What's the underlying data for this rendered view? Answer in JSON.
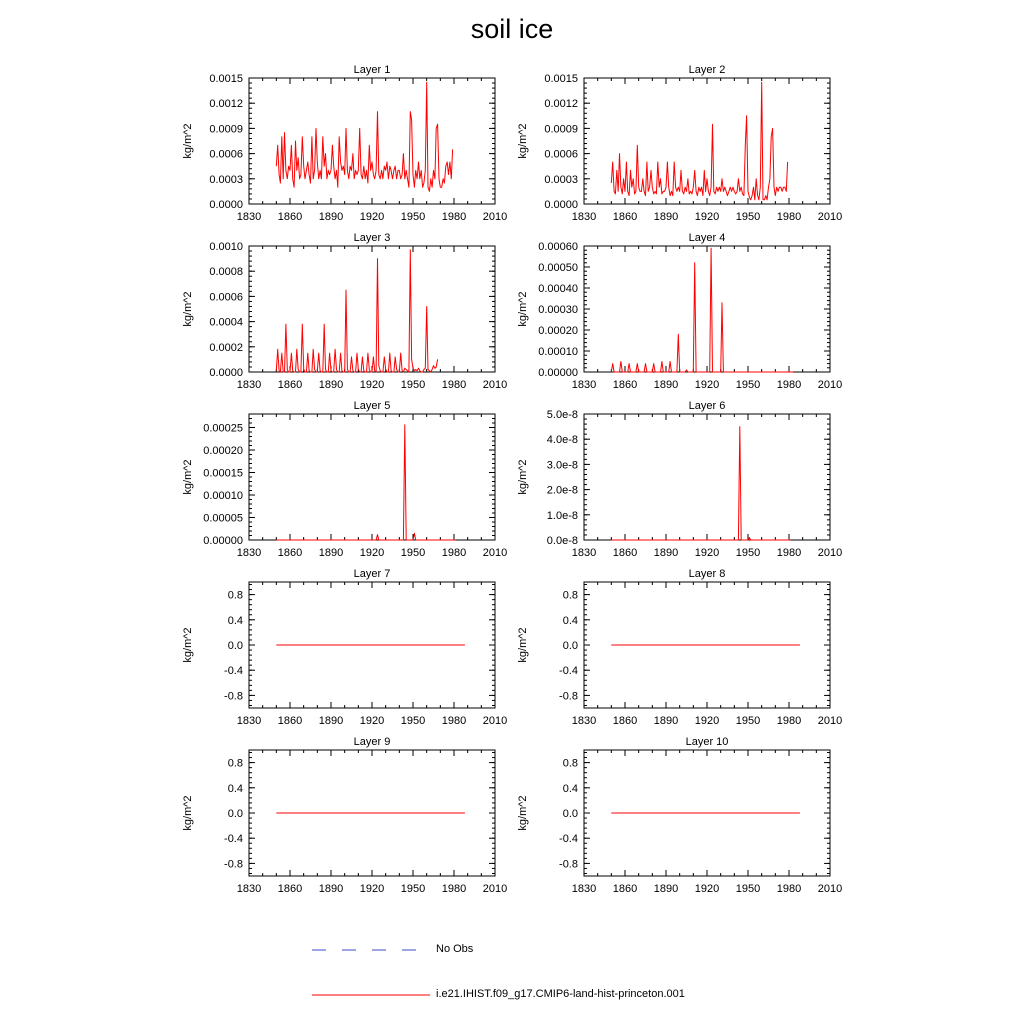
{
  "title": "soil ice",
  "colors": {
    "model": "#ff0000",
    "obs": "#3b4bc8"
  },
  "legend": [
    {
      "label": "No Obs",
      "style": "dashed",
      "color": "#3b4bc8"
    },
    {
      "label": "i.e21.IHIST.f09_g17.CMIP6-land-hist-princeton.001",
      "style": "solid",
      "color": "#ff0000"
    }
  ],
  "chart_data": [
    {
      "type": "line",
      "title": "Layer 1",
      "ylabel": "kg/m^2",
      "xlim": [
        1830,
        2010
      ],
      "ylim": [
        0,
        0.0015
      ],
      "xticks": [
        "1830",
        "1860",
        "1890",
        "1920",
        "1950",
        "1980",
        "2010"
      ],
      "yticks": [
        "0.0000",
        "0.0003",
        "0.0006",
        "0.0009",
        "0.0012",
        "0.0015"
      ],
      "series": [
        {
          "start_year": 1850,
          "values": [
            0.00045,
            0.0007,
            0.00035,
            0.00025,
            0.0008,
            0.0003,
            0.00085,
            0.0004,
            0.0003,
            0.00045,
            0.0004,
            0.0007,
            0.0003,
            0.0002,
            0.00075,
            0.0004,
            0.00055,
            0.0003,
            0.00035,
            0.0008,
            0.00045,
            0.0003,
            0.0004,
            0.0005,
            0.00035,
            0.00025,
            0.0008,
            0.0003,
            0.0004,
            0.0009,
            0.0005,
            0.0003,
            0.0004,
            0.0003,
            0.0008,
            0.00045,
            0.0006,
            0.0003,
            0.0004,
            0.00035,
            0.0004,
            0.0007,
            0.00045,
            0.0003,
            0.0004,
            0.0002,
            0.0008,
            0.0005,
            0.0004,
            0.00045,
            0.00035,
            0.0009,
            0.0004,
            0.0003,
            0.00045,
            0.0004,
            0.0006,
            0.0003,
            0.0004,
            0.00035,
            0.0004,
            0.0009,
            0.00035,
            0.0003,
            0.00045,
            0.0003,
            0.0004,
            0.00025,
            0.0007,
            0.0004,
            0.0005,
            0.00035,
            0.0003,
            0.0004,
            0.0011,
            0.00035,
            0.0003,
            0.0004,
            0.0003,
            0.00045,
            0.0004,
            0.0005,
            0.0003,
            0.00045,
            0.0004,
            0.0003,
            0.0004,
            0.00045,
            0.0003,
            0.0004,
            0.0004,
            0.0003,
            0.00035,
            0.0006,
            0.0003,
            0.0004,
            0.0003,
            0.0002,
            0.0011,
            0.001,
            0.00035,
            0.0002,
            0.0004,
            0.0003,
            0.0005,
            0.0003,
            0.0004,
            0.0002,
            0.00025,
            0.0004,
            0.00145,
            0.0002,
            0.00015,
            0.0003,
            0.0002,
            0.0004,
            0.0003,
            0.0009,
            0.00095,
            0.0003,
            0.0002,
            0.0002,
            0.0003,
            0.00025,
            0.00045,
            0.0005,
            0.00035,
            0.0005,
            0.0003,
            0.00065
          ]
        }
      ]
    },
    {
      "type": "line",
      "title": "Layer 2",
      "ylabel": "kg/m^2",
      "xlim": [
        1830,
        2010
      ],
      "ylim": [
        0,
        0.0015
      ],
      "xticks": [
        "1830",
        "1860",
        "1890",
        "1920",
        "1950",
        "1980",
        "2010"
      ],
      "yticks": [
        "0.0000",
        "0.0003",
        "0.0006",
        "0.0009",
        "0.0012",
        "0.0015"
      ],
      "series": [
        {
          "start_year": 1850,
          "values": [
            0.00025,
            0.0005,
            0.00015,
            0.00012,
            0.0004,
            0.00015,
            0.0006,
            0.0002,
            0.00012,
            0.0003,
            0.00015,
            0.0005,
            0.00015,
            0.0001,
            0.0004,
            0.0002,
            0.0003,
            0.00012,
            0.00015,
            0.0007,
            0.0002,
            0.00015,
            0.00015,
            0.0003,
            0.00015,
            0.0001,
            0.0005,
            0.00015,
            0.0002,
            0.0004,
            0.0002,
            0.00012,
            0.00015,
            0.00012,
            0.0005,
            0.0002,
            0.0003,
            0.00012,
            0.00015,
            0.00015,
            0.0002,
            0.0005,
            0.0002,
            0.0001,
            0.00015,
            0.0001,
            0.0005,
            0.0002,
            0.00015,
            0.0002,
            0.00015,
            0.0004,
            0.00015,
            0.00012,
            0.0002,
            0.00015,
            0.0003,
            0.00012,
            0.00015,
            0.00012,
            0.0002,
            0.0004,
            0.00015,
            0.0001,
            0.0002,
            0.00015,
            0.0002,
            0.0001,
            0.0004,
            0.00015,
            0.0003,
            0.00015,
            0.0001,
            0.0002,
            0.00095,
            0.00015,
            0.00012,
            0.0002,
            0.00015,
            0.0002,
            0.00015,
            0.0003,
            0.00015,
            0.0002,
            0.00015,
            0.0001,
            0.00015,
            0.0002,
            0.00015,
            0.0002,
            0.00015,
            0.00012,
            0.00015,
            0.0003,
            0.00015,
            0.0002,
            0.00012,
            0.0001,
            0.0007,
            0.00105,
            0.00015,
            8e-05,
            5e-05,
            0.0001,
            0.0002,
            5e-05,
            0.0003,
            0.0001,
            5e-05,
            0.0002,
            0.00145,
            5e-05,
            5e-05,
            0.0001,
            5e-05,
            0.0002,
            0.0003,
            0.0008,
            0.0009,
            0.0002,
            0.0001,
            0.0002,
            0.00015,
            0.0002,
            0.0002,
            0.00015,
            0.0002,
            0.0002,
            0.00015,
            0.0005
          ]
        }
      ]
    },
    {
      "type": "line",
      "title": "Layer 3",
      "ylabel": "kg/m^2",
      "xlim": [
        1830,
        2010
      ],
      "ylim": [
        0,
        0.001
      ],
      "xticks": [
        "1830",
        "1860",
        "1890",
        "1920",
        "1950",
        "1980",
        "2010"
      ],
      "yticks": [
        "0.0000",
        "0.0002",
        "0.0004",
        "0.0006",
        "0.0008",
        "0.0010"
      ],
      "series": [
        {
          "start_year": 1850,
          "values": [
            1e-05,
            0.00018,
            1e-05,
            0,
            0.00015,
            0,
            0,
            0.00038,
            2e-05,
            0,
            0,
            0.00015,
            1e-05,
            0,
            0,
            0.00018,
            2e-05,
            0,
            0,
            0.00038,
            2e-05,
            0,
            0,
            0.00015,
            1e-05,
            0,
            0,
            0.00018,
            2e-05,
            0,
            0,
            0.00015,
            1e-05,
            0,
            0,
            0.00038,
            2e-05,
            0,
            0,
            0.00015,
            1e-05,
            0,
            0,
            0.00018,
            2e-05,
            0,
            0,
            0.00015,
            1e-05,
            0,
            0,
            0.00065,
            2e-05,
            0,
            0,
            0.00012,
            1e-05,
            0,
            0,
            0.00015,
            2e-05,
            0,
            0,
            0.00012,
            1e-05,
            0,
            0,
            0.00015,
            2e-05,
            0,
            0,
            0.00012,
            1e-05,
            0,
            0.0009,
            5e-05,
            1e-05,
            0,
            0,
            0.00012,
            2e-05,
            0,
            0,
            0.00015,
            1e-05,
            0,
            0,
            0.00012,
            2e-05,
            0,
            0,
            0.00015,
            1e-05,
            0,
            3e-05,
            2e-05,
            1e-05,
            0,
            0.00097,
            0.0001,
            3e-05,
            1e-05,
            2e-05,
            1e-05,
            3e-05,
            1e-05,
            0,
            0,
            2e-05,
            3e-05,
            0.00052,
            2e-05,
            1e-05,
            0,
            2e-05,
            5e-05,
            3e-05,
            4e-05,
            0.0001
          ]
        }
      ]
    },
    {
      "type": "line",
      "title": "Layer 4",
      "ylabel": "kg/m^2",
      "xlim": [
        1830,
        2010
      ],
      "ylim": [
        0,
        0.0006
      ],
      "xticks": [
        "1830",
        "1860",
        "1890",
        "1920",
        "1950",
        "1980",
        "2010"
      ],
      "yticks": [
        "0.00000",
        "0.00010",
        "0.00020",
        "0.00030",
        "0.00040",
        "0.00050",
        "0.00060"
      ],
      "series": [
        {
          "start_year": 1850,
          "values": [
            0,
            4e-05,
            0,
            0,
            0,
            0,
            0,
            5e-05,
            0,
            0,
            0,
            0,
            0,
            4e-05,
            0,
            0,
            0,
            0,
            0,
            4e-05,
            0,
            0,
            0,
            0,
            0,
            4e-05,
            0,
            0,
            0,
            0,
            0,
            4e-05,
            0,
            0,
            0,
            0,
            0,
            5e-05,
            0,
            0,
            0,
            0,
            0,
            5e-05,
            0,
            0,
            0,
            0,
            0,
            0.00018,
            0,
            0,
            0,
            0,
            0,
            1e-05,
            0,
            0,
            0,
            0,
            0,
            0.00052,
            0,
            0,
            0,
            0,
            0,
            0,
            0,
            0,
            0,
            0,
            0,
            0.00059,
            0,
            0,
            0,
            0,
            0,
            0,
            0,
            0.00033,
            0,
            0,
            0,
            0,
            0,
            0,
            0,
            0,
            0,
            0,
            0,
            0,
            0,
            0,
            0,
            0,
            0,
            0,
            0,
            0,
            0,
            0,
            0,
            0,
            0,
            0,
            0,
            0,
            0,
            0,
            0,
            0,
            0,
            0,
            0,
            0,
            0,
            0,
            0,
            0,
            0,
            0,
            0,
            0,
            0,
            0,
            0,
            0,
            0,
            0,
            0,
            0
          ]
        }
      ]
    },
    {
      "type": "line",
      "title": "Layer 5",
      "ylabel": "kg/m^2",
      "xlim": [
        1830,
        2010
      ],
      "ylim": [
        0,
        0.00028
      ],
      "xticks": [
        "1830",
        "1860",
        "1890",
        "1920",
        "1950",
        "1980",
        "2010"
      ],
      "yticks": [
        "0.00000",
        "0.00005",
        "0.00010",
        "0.00015",
        "0.00020",
        "0.00025"
      ],
      "series": [
        {
          "start_year": 1850,
          "values": [
            0,
            0,
            0,
            0,
            0,
            0,
            0,
            0,
            0,
            0,
            0,
            0,
            0,
            0,
            0,
            0,
            0,
            0,
            0,
            0,
            0,
            0,
            0,
            0,
            0,
            0,
            0,
            0,
            0,
            0,
            0,
            0,
            0,
            0,
            0,
            0,
            0,
            0,
            0,
            0,
            0,
            0,
            0,
            0,
            0,
            0,
            0,
            0,
            0,
            0,
            0,
            0,
            0,
            0,
            0,
            0,
            0,
            0,
            0,
            0,
            0,
            0,
            0,
            0,
            0,
            0,
            0,
            0,
            0,
            0,
            0,
            0,
            0,
            0,
            1.2e-05,
            0,
            0,
            0,
            0,
            0,
            0,
            0,
            0,
            0,
            0,
            0,
            0,
            0,
            0,
            0,
            0,
            0,
            0,
            0,
            0.000256,
            0,
            0,
            0,
            0,
            0,
            0,
            1.5e-05,
            0,
            0,
            0,
            0,
            0,
            0,
            0,
            0,
            0,
            0,
            0,
            0,
            0,
            0,
            0,
            0,
            0,
            0,
            0,
            0,
            0,
            0,
            0,
            0,
            0,
            0,
            0,
            0,
            0,
            0
          ]
        }
      ]
    },
    {
      "type": "line",
      "title": "Layer 6",
      "ylabel": "kg/m^2",
      "xlim": [
        1830,
        2010
      ],
      "ylim": [
        0,
        5e-08
      ],
      "xticks": [
        "1830",
        "1860",
        "1890",
        "1920",
        "1950",
        "1980",
        "2010"
      ],
      "yticks": [
        "0.0e-8",
        "1.0e-8",
        "2.0e-8",
        "3.0e-8",
        "4.0e-8",
        "5.0e-8"
      ],
      "series": [
        {
          "start_year": 1850,
          "values": [
            0,
            0,
            0,
            0,
            0,
            0,
            0,
            0,
            0,
            0,
            0,
            0,
            0,
            0,
            0,
            0,
            0,
            0,
            0,
            0,
            0,
            0,
            0,
            0,
            0,
            0,
            0,
            0,
            0,
            0,
            0,
            0,
            0,
            0,
            0,
            0,
            0,
            0,
            0,
            0,
            0,
            0,
            0,
            0,
            0,
            0,
            0,
            0,
            0,
            0,
            0,
            0,
            0,
            0,
            0,
            0,
            0,
            0,
            0,
            0,
            0,
            0,
            0,
            0,
            0,
            0,
            0,
            0,
            0,
            0,
            0,
            0,
            0,
            0,
            0,
            0,
            0,
            0,
            0,
            0,
            0,
            0,
            0,
            0,
            0,
            0,
            0,
            0,
            0,
            0,
            0,
            0,
            0,
            0,
            4.5e-08,
            0,
            0,
            0,
            0,
            0,
            0,
            1e-09,
            0,
            0,
            0,
            0,
            0,
            0,
            0,
            0,
            0,
            0,
            0,
            0,
            0,
            0,
            0,
            0,
            0,
            0,
            0,
            0,
            0,
            0,
            0,
            0,
            0,
            0,
            0,
            0,
            0,
            0
          ]
        }
      ]
    },
    {
      "type": "line",
      "title": "Layer 7",
      "ylabel": "kg/m^2",
      "xlim": [
        1830,
        2010
      ],
      "ylim": [
        -1,
        1
      ],
      "xticks": [
        "1830",
        "1860",
        "1890",
        "1920",
        "1950",
        "1980",
        "2010"
      ],
      "yticks": [
        "-0.8",
        "-0.4",
        "0.0",
        "0.4",
        "0.8"
      ],
      "series": [
        {
          "x": [
            1850,
            1988
          ],
          "values": [
            0,
            0
          ]
        }
      ]
    },
    {
      "type": "line",
      "title": "Layer 8",
      "ylabel": "kg/m^2",
      "xlim": [
        1830,
        2010
      ],
      "ylim": [
        -1,
        1
      ],
      "xticks": [
        "1830",
        "1860",
        "1890",
        "1920",
        "1950",
        "1980",
        "2010"
      ],
      "yticks": [
        "-0.8",
        "-0.4",
        "0.0",
        "0.4",
        "0.8"
      ],
      "series": [
        {
          "x": [
            1850,
            1988
          ],
          "values": [
            0,
            0
          ]
        }
      ]
    },
    {
      "type": "line",
      "title": "Layer 9",
      "ylabel": "kg/m^2",
      "xlim": [
        1830,
        2010
      ],
      "ylim": [
        -1,
        1
      ],
      "xticks": [
        "1830",
        "1860",
        "1890",
        "1920",
        "1950",
        "1980",
        "2010"
      ],
      "yticks": [
        "-0.8",
        "-0.4",
        "0.0",
        "0.4",
        "0.8"
      ],
      "series": [
        {
          "x": [
            1850,
            1988
          ],
          "values": [
            0,
            0
          ]
        }
      ]
    },
    {
      "type": "line",
      "title": "Layer 10",
      "ylabel": "kg/m^2",
      "xlim": [
        1830,
        2010
      ],
      "ylim": [
        -1,
        1
      ],
      "xticks": [
        "1830",
        "1860",
        "1890",
        "1920",
        "1950",
        "1980",
        "2010"
      ],
      "yticks": [
        "-0.8",
        "-0.4",
        "0.0",
        "0.4",
        "0.8"
      ],
      "series": [
        {
          "x": [
            1850,
            1988
          ],
          "values": [
            0,
            0
          ]
        }
      ]
    }
  ]
}
